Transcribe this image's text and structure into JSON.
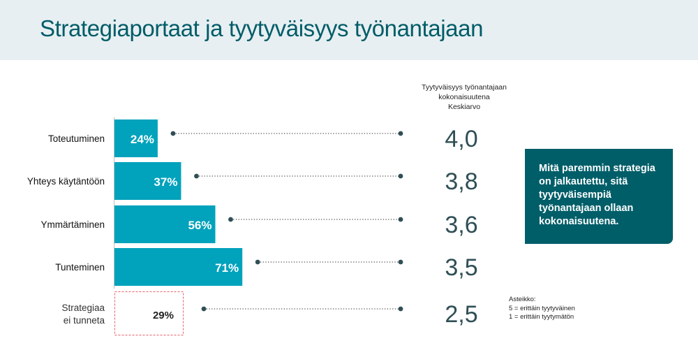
{
  "title": "Strategiaportaat ja tyytyväisyys työnantajaan",
  "callout": "Mitä paremmin strategia on jalkautettu, sitä tyytyväisempiä työnantajaan ollaan kokonaisuutena.",
  "scale": {
    "title": "Asteikko:",
    "line1": "5 = erittäin tyytyväinen",
    "line2": "1 = erittäin tyytymätön"
  },
  "column_header": {
    "line1": "Tyytyväisyys työnantajaan",
    "line2": "kokonaisuutena",
    "line3": "Keskiarvo"
  },
  "colors": {
    "bar": "#00a2bc",
    "title": "#005c67",
    "callout_bg": "#005e69",
    "dashed_outline": "#e8606a",
    "average_text": "#2f4f55",
    "dot": "#2f4f55"
  },
  "chart_data": {
    "type": "bar",
    "orientation": "horizontal",
    "title": "",
    "categories": [
      "Toteutuminen",
      "Yhteys käytäntöön",
      "Ymmärtäminen",
      "Tunteminen",
      "Strategiaa ei tunneta"
    ],
    "category_lines": [
      [
        "Toteutuminen"
      ],
      [
        "Yhteys käytäntöön"
      ],
      [
        "Ymmärtäminen"
      ],
      [
        "Tunteminen"
      ],
      [
        "Strategiaa",
        "ei tunneta"
      ]
    ],
    "values": [
      24,
      37,
      56,
      71,
      29
    ],
    "value_labels": [
      "24%",
      "37%",
      "56%",
      "71%",
      "29%"
    ],
    "outline_only": [
      false,
      false,
      false,
      false,
      true
    ],
    "averages": [
      4.0,
      3.8,
      3.6,
      3.5,
      2.5
    ],
    "average_labels": [
      "4,0",
      "3,8",
      "3,6",
      "3,5",
      "2,5"
    ],
    "xlim": [
      0,
      100
    ],
    "grid": false,
    "legend": "none"
  }
}
